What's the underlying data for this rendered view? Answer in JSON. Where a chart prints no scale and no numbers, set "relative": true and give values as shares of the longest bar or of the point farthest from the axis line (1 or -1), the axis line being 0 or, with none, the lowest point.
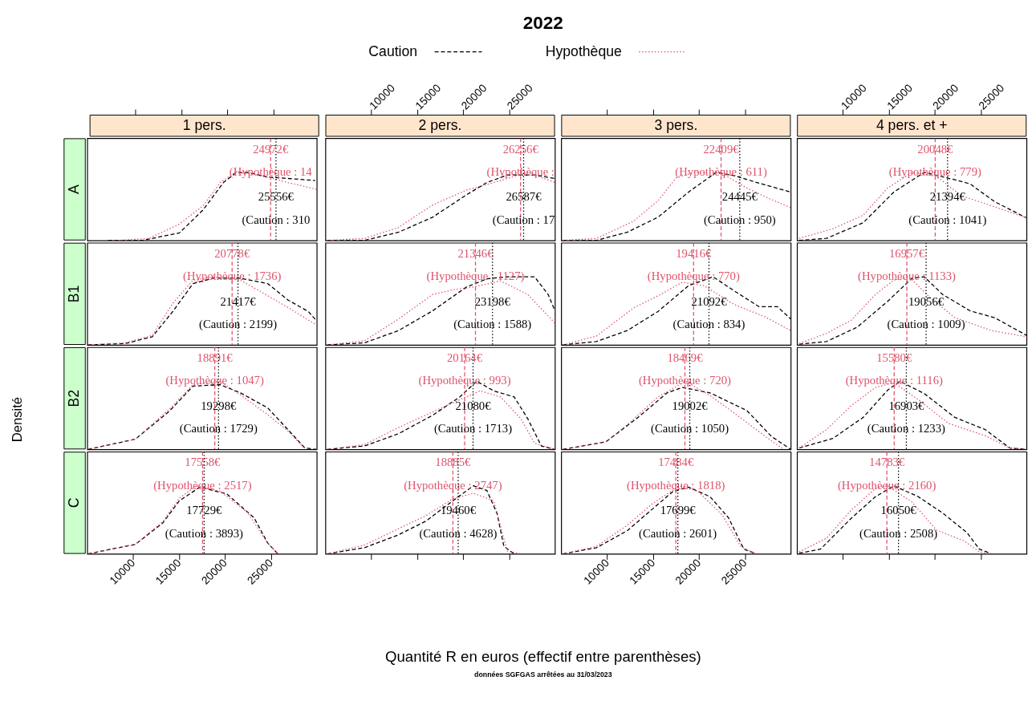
{
  "chart_data": [
    {
      "type": "line",
      "title": "1 pers.",
      "ylabel": "A",
      "relative": true,
      "xlim": [
        5000,
        30000
      ],
      "xticks": [
        10000,
        15000,
        20000,
        25000
      ],
      "tick_labels": false,
      "legend": "top",
      "series": [
        {
          "name": "Caution",
          "color": "#000000",
          "line_style": "dashed",
          "x": [
            7290,
            10980,
            15040,
            17630,
            19840,
            21140,
            22430,
            24650,
            26860,
            29820
          ],
          "values": [
            0,
            0,
            0.11,
            0.45,
            0.85,
            0.99,
            1,
            0.93,
            0.91,
            0.88
          ]
        },
        {
          "name": "Hypothèque",
          "color": "#df536b",
          "line_style": "dotted",
          "x": [
            8400,
            11720,
            15040,
            17630,
            19480,
            21140,
            23170,
            25010,
            26860,
            29080,
            30000
          ],
          "values": [
            0,
            0.03,
            0.24,
            0.51,
            0.85,
            1,
            0.97,
            0.92,
            0.85,
            0.78,
            0.75
          ]
        }
      ],
      "ref_lines": [
        {
          "axis": "x",
          "value": 24972,
          "label": "24972€\n(Hypothèque : 14",
          "color": "#df536b",
          "line_style": "dashed"
        },
        {
          "axis": "x",
          "value": 25556,
          "label": "25556€\n(Caution : 310",
          "color": "#000000",
          "line_style": "dotted"
        }
      ]
    },
    {
      "type": "line",
      "title": "2 pers.",
      "relative": true,
      "xlim": [
        5000,
        30000
      ],
      "xticks": [
        10000,
        15000,
        20000,
        25000
      ],
      "tick_labels": "x",
      "series": [
        {
          "name": "Caution",
          "color": "#000000",
          "line_style": "dashed",
          "x": [
            5190,
            9260,
            12960,
            16670,
            20370,
            22590,
            24810,
            27780,
            30000
          ],
          "values": [
            0,
            0,
            0.12,
            0.34,
            0.67,
            0.85,
            0.96,
            0.96,
            0.91
          ]
        },
        {
          "name": "Hypothèque",
          "color": "#df536b",
          "line_style": "dotted",
          "x": [
            5190,
            9260,
            12960,
            16670,
            20370,
            22590,
            24810,
            27040,
            30000
          ],
          "values": [
            0,
            0.03,
            0.19,
            0.52,
            0.74,
            0.82,
            0.91,
            1,
            0.85
          ]
        }
      ],
      "ref_lines": [
        {
          "axis": "x",
          "value": 26256,
          "label": "26256€\n(Hypothèque :",
          "color": "#df536b",
          "line_style": "dashed"
        },
        {
          "axis": "x",
          "value": 26587,
          "label": "26587€\n(Caution : 17",
          "color": "#000000",
          "line_style": "dotted"
        }
      ]
    },
    {
      "type": "line",
      "title": "3 pers.",
      "relative": true,
      "xlim": [
        5000,
        30000
      ],
      "xticks": [
        10000,
        15000,
        20000,
        25000
      ],
      "tick_labels": false,
      "series": [
        {
          "name": "Caution",
          "color": "#000000",
          "line_style": "dashed",
          "x": [
            5170,
            8840,
            12190,
            15530,
            18870,
            21880,
            23880,
            26560,
            30000
          ],
          "values": [
            0,
            0,
            0.12,
            0.34,
            0.71,
            1,
            0.95,
            0.84,
            0.71
          ]
        },
        {
          "name": "Hypothèque",
          "color": "#df536b",
          "line_style": "dotted",
          "x": [
            5170,
            8840,
            12850,
            15530,
            17530,
            19540,
            22550,
            25220,
            27230,
            30000
          ],
          "values": [
            0,
            0.03,
            0.28,
            0.58,
            0.92,
            1,
            0.98,
            0.77,
            0.64,
            0.48
          ]
        }
      ],
      "ref_lines": [
        {
          "axis": "x",
          "value": 22409,
          "label": "22409€\n(Hypothèque : 611)",
          "color": "#df536b",
          "line_style": "dashed"
        },
        {
          "axis": "x",
          "value": 24445,
          "label": "24445€\n(Caution : 950)",
          "color": "#000000",
          "line_style": "dotted"
        }
      ]
    },
    {
      "type": "line",
      "title": "4 pers. et +",
      "relative": true,
      "xlim": [
        5000,
        30000
      ],
      "xticks": [
        10000,
        15000,
        20000,
        25000
      ],
      "tick_labels": "x",
      "series": [
        {
          "name": "Caution",
          "color": "#000000",
          "line_style": "dashed",
          "x": [
            5230,
            8220,
            12210,
            15540,
            18860,
            22190,
            23850,
            26510,
            30000
          ],
          "values": [
            0,
            0.03,
            0.26,
            0.71,
            1,
            0.89,
            0.83,
            0.57,
            0.33
          ]
        },
        {
          "name": "Hypothèque",
          "color": "#df536b",
          "line_style": "dotted",
          "x": [
            5230,
            8890,
            12210,
            14870,
            17530,
            20190,
            22850,
            25510,
            30000
          ],
          "values": [
            0.03,
            0.17,
            0.37,
            0.77,
            1,
            0.94,
            0.66,
            0.54,
            0.33
          ]
        }
      ],
      "ref_lines": [
        {
          "axis": "x",
          "value": 20048,
          "label": "20048€\n(Hypothèque : 779)",
          "color": "#df536b",
          "line_style": "dashed"
        },
        {
          "axis": "x",
          "value": 21394,
          "label": "21394€\n(Caution : 1041)",
          "color": "#000000",
          "line_style": "dotted"
        }
      ]
    },
    {
      "type": "line",
      "ylabel": "B1",
      "relative": true,
      "xlim": [
        5000,
        30000
      ],
      "xticks": [
        10000,
        15000,
        20000,
        25000
      ],
      "tick_labels": false,
      "series": [
        {
          "name": "Caution",
          "color": "#000000",
          "line_style": "dashed",
          "x": [
            5070,
            9140,
            12090,
            14310,
            16520,
            18740,
            21690,
            24650,
            26860,
            29080,
            30000
          ],
          "values": [
            0,
            0.02,
            0.12,
            0.49,
            0.9,
            0.98,
            0.98,
            0.9,
            0.66,
            0.49,
            0.35
          ]
        },
        {
          "name": "Hypothèque",
          "color": "#df536b",
          "line_style": "dotted",
          "x": [
            5070,
            9140,
            12090,
            14310,
            16520,
            18740,
            21690,
            23910,
            26860,
            30000
          ],
          "values": [
            0,
            0.03,
            0.14,
            0.61,
            0.95,
            1,
            0.95,
            0.78,
            0.55,
            0.29
          ]
        }
      ],
      "ref_lines": [
        {
          "axis": "x",
          "value": 20778,
          "label": "20778€\n(Hypothèque : 1736)",
          "color": "#df536b",
          "line_style": "dashed"
        },
        {
          "axis": "x",
          "value": 21417,
          "label": "21417€\n(Caution : 2199)",
          "color": "#000000",
          "line_style": "dotted"
        }
      ]
    },
    {
      "type": "line",
      "relative": true,
      "xlim": [
        5000,
        30000
      ],
      "xticks": [
        10000,
        15000,
        20000,
        25000
      ],
      "tick_labels": false,
      "series": [
        {
          "name": "Caution",
          "color": "#000000",
          "line_style": "dashed",
          "x": [
            5190,
            9260,
            12960,
            16670,
            20370,
            22590,
            24810,
            27780,
            29260,
            30000
          ],
          "values": [
            0,
            0.03,
            0.21,
            0.5,
            0.85,
            0.97,
            1,
            1,
            0.74,
            0.5
          ]
        },
        {
          "name": "Hypothèque",
          "color": "#df536b",
          "line_style": "dotted",
          "x": [
            5190,
            9260,
            12960,
            16670,
            18890,
            21110,
            24070,
            27040,
            30000
          ],
          "values": [
            0,
            0.06,
            0.38,
            0.74,
            0.81,
            0.85,
            0.94,
            0.74,
            0.32
          ]
        }
      ],
      "ref_lines": [
        {
          "axis": "x",
          "value": 21346,
          "label": "21346€\n(Hypothèque : 1127)",
          "color": "#df536b",
          "line_style": "dashed"
        },
        {
          "axis": "x",
          "value": 23198,
          "label": "23198€\n(Caution : 1588)",
          "color": "#000000",
          "line_style": "dotted"
        }
      ]
    },
    {
      "type": "line",
      "relative": true,
      "xlim": [
        5000,
        30000
      ],
      "xticks": [
        10000,
        15000,
        20000,
        25000
      ],
      "tick_labels": false,
      "series": [
        {
          "name": "Caution",
          "color": "#000000",
          "line_style": "dashed",
          "x": [
            5170,
            8840,
            12190,
            15530,
            18870,
            21540,
            23880,
            26560,
            28560,
            30000
          ],
          "values": [
            0,
            0.05,
            0.21,
            0.49,
            0.87,
            1,
            0.79,
            0.56,
            0.56,
            0.38
          ]
        },
        {
          "name": "Hypothèque",
          "color": "#df536b",
          "line_style": "dotted",
          "x": [
            5170,
            8840,
            12850,
            15530,
            18200,
            20540,
            23880,
            27230,
            30000
          ],
          "values": [
            0,
            0.13,
            0.54,
            0.72,
            0.92,
            0.87,
            0.59,
            0.41,
            0.21
          ]
        }
      ],
      "ref_lines": [
        {
          "axis": "x",
          "value": 19416,
          "label": "19416€\n(Hypothèque : 770)",
          "color": "#df536b",
          "line_style": "dashed"
        },
        {
          "axis": "x",
          "value": 21092,
          "label": "21092€\n(Caution : 834)",
          "color": "#000000",
          "line_style": "dotted"
        }
      ]
    },
    {
      "type": "line",
      "relative": true,
      "xlim": [
        5000,
        30000
      ],
      "xticks": [
        10000,
        15000,
        20000,
        25000
      ],
      "tick_labels": false,
      "series": [
        {
          "name": "Caution",
          "color": "#000000",
          "line_style": "dashed",
          "x": [
            5230,
            8220,
            11550,
            14870,
            17530,
            18860,
            20860,
            23850,
            26510,
            30000
          ],
          "values": [
            0.01,
            0.05,
            0.26,
            0.64,
            0.98,
            1,
            0.74,
            0.5,
            0.4,
            0.14
          ]
        },
        {
          "name": "Hypothèque",
          "color": "#df536b",
          "line_style": "dotted",
          "x": [
            5230,
            8220,
            10880,
            13540,
            15540,
            17200,
            19530,
            22190,
            26180,
            30000
          ],
          "values": [
            0.02,
            0.17,
            0.36,
            0.74,
            0.95,
            1,
            0.69,
            0.4,
            0.21,
            0.12
          ]
        }
      ],
      "ref_lines": [
        {
          "axis": "x",
          "value": 16957,
          "label": "16957€\n(Hypothèque : 1133)",
          "color": "#df536b",
          "line_style": "dashed"
        },
        {
          "axis": "x",
          "value": 19056,
          "label": "19056€\n(Caution : 1009)",
          "color": "#000000",
          "line_style": "dotted"
        }
      ]
    },
    {
      "type": "line",
      "ylabel": "B2",
      "relative": true,
      "xlim": [
        5000,
        30000
      ],
      "xticks": [
        10000,
        15000,
        20000,
        25000
      ],
      "tick_labels": false,
      "series": [
        {
          "name": "Caution",
          "color": "#000000",
          "line_style": "dashed",
          "x": [
            5070,
            10240,
            13940,
            16520,
            19480,
            21690,
            24650,
            26860,
            28710,
            30000
          ],
          "values": [
            0,
            0.15,
            0.56,
            0.93,
            0.95,
            0.83,
            0.61,
            0.29,
            0.02,
            0
          ]
        },
        {
          "name": "Hypothèque",
          "color": "#df536b",
          "line_style": "dotted",
          "x": [
            5070,
            10240,
            13940,
            16520,
            19480,
            21690,
            24650,
            26860,
            28710
          ],
          "values": [
            0,
            0.15,
            0.59,
            0.95,
            1,
            0.8,
            0.51,
            0.27,
            0.01
          ]
        }
      ],
      "ref_lines": [
        {
          "axis": "x",
          "value": 18891,
          "label": "18891€\n(Hypothèque : 1047)",
          "color": "#df536b",
          "line_style": "dashed"
        },
        {
          "axis": "x",
          "value": 19298,
          "label": "19298€\n(Caution : 1729)",
          "color": "#000000",
          "line_style": "dotted"
        }
      ]
    },
    {
      "type": "line",
      "relative": true,
      "xlim": [
        5000,
        30000
      ],
      "xticks": [
        10000,
        15000,
        20000,
        25000
      ],
      "tick_labels": false,
      "series": [
        {
          "name": "Caution",
          "color": "#000000",
          "line_style": "dashed",
          "x": [
            5190,
            9260,
            12960,
            16670,
            19630,
            21480,
            23330,
            25560,
            27040,
            28520,
            30000
          ],
          "values": [
            0,
            0.05,
            0.23,
            0.5,
            0.77,
            1,
            0.86,
            0.77,
            0.45,
            0.05,
            0
          ]
        },
        {
          "name": "Hypothèque",
          "color": "#df536b",
          "line_style": "dotted",
          "x": [
            5190,
            9260,
            12960,
            16670,
            19630,
            21850,
            24070,
            26300,
            27780,
            30000
          ],
          "values": [
            0,
            0.07,
            0.32,
            0.55,
            0.73,
            0.86,
            0.77,
            0.45,
            0.09,
            0
          ]
        }
      ],
      "ref_lines": [
        {
          "axis": "x",
          "value": 20164,
          "label": "20164€\n(Hypothèque : 993)",
          "color": "#df536b",
          "line_style": "dashed"
        },
        {
          "axis": "x",
          "value": 21080,
          "label": "21080€\n(Caution : 1713)",
          "color": "#000000",
          "line_style": "dotted"
        }
      ]
    },
    {
      "type": "line",
      "relative": true,
      "xlim": [
        5000,
        30000
      ],
      "xticks": [
        10000,
        15000,
        20000,
        25000
      ],
      "tick_labels": false,
      "series": [
        {
          "name": "Caution",
          "color": "#000000",
          "line_style": "dashed",
          "x": [
            5170,
            9850,
            13190,
            16530,
            18200,
            21210,
            25220,
            27900,
            30000
          ],
          "values": [
            0,
            0.11,
            0.45,
            0.83,
            0.91,
            0.83,
            0.57,
            0.19,
            0
          ]
        },
        {
          "name": "Hypothèque",
          "color": "#df536b",
          "line_style": "dotted",
          "x": [
            5170,
            9850,
            12520,
            15530,
            18540,
            21210,
            23880,
            27230,
            29240
          ],
          "values": [
            0,
            0.11,
            0.4,
            0.77,
            1,
            0.79,
            0.53,
            0.19,
            0
          ]
        }
      ],
      "ref_lines": [
        {
          "axis": "x",
          "value": 18469,
          "label": "18469€\n(Hypothèque : 720)",
          "color": "#df536b",
          "line_style": "dashed"
        },
        {
          "axis": "x",
          "value": 19002,
          "label": "19002€\n(Caution : 1050)",
          "color": "#000000",
          "line_style": "dotted"
        }
      ]
    },
    {
      "type": "line",
      "relative": true,
      "xlim": [
        5000,
        30000
      ],
      "xticks": [
        10000,
        15000,
        20000,
        25000
      ],
      "tick_labels": false,
      "series": [
        {
          "name": "Caution",
          "color": "#000000",
          "line_style": "dashed",
          "x": [
            5230,
            8890,
            12210,
            14870,
            16200,
            18860,
            22190,
            25510,
            28170,
            30000
          ],
          "values": [
            0.02,
            0.16,
            0.47,
            0.87,
            1,
            0.82,
            0.47,
            0.29,
            0.02,
            0
          ]
        },
        {
          "name": "Hypothèque",
          "color": "#df536b",
          "line_style": "dotted",
          "x": [
            5230,
            8220,
            10880,
            13540,
            15540,
            18200,
            21520,
            25510,
            28170,
            30000
          ],
          "values": [
            0.02,
            0.29,
            0.64,
            0.91,
            0.98,
            0.73,
            0.38,
            0.2,
            0.02,
            0
          ]
        }
      ],
      "ref_lines": [
        {
          "axis": "x",
          "value": 15580,
          "label": "15580€\n(Hypothèque : 1116)",
          "color": "#df536b",
          "line_style": "dashed"
        },
        {
          "axis": "x",
          "value": 16903,
          "label": "16903€\n(Caution : 1233)",
          "color": "#000000",
          "line_style": "dotted"
        }
      ]
    },
    {
      "type": "line",
      "ylabel": "C",
      "relative": true,
      "xlim": [
        5000,
        30000
      ],
      "xticks": [
        10000,
        15000,
        20000,
        25000
      ],
      "tick_labels": "x",
      "series": [
        {
          "name": "Caution",
          "color": "#000000",
          "line_style": "dashed",
          "x": [
            5070,
            10240,
            13200,
            15040,
            17260,
            20210,
            23170,
            24650,
            25760
          ],
          "values": [
            0,
            0.14,
            0.45,
            0.78,
            0.98,
            0.88,
            0.53,
            0.16,
            0
          ]
        },
        {
          "name": "Hypothèque",
          "color": "#df536b",
          "line_style": "dotted",
          "x": [
            5070,
            10240,
            13200,
            15040,
            16890,
            19480,
            22430,
            24650,
            25760
          ],
          "values": [
            0,
            0.14,
            0.47,
            0.82,
            1,
            0.92,
            0.61,
            0.16,
            0
          ]
        }
      ],
      "ref_lines": [
        {
          "axis": "x",
          "value": 17558,
          "label": "17558€\n(Hypothèque : 2517)",
          "color": "#df536b",
          "line_style": "dashed"
        },
        {
          "axis": "x",
          "value": 17729,
          "label": "17729€\n(Caution : 3893)",
          "color": "#000000",
          "line_style": "dotted"
        }
      ]
    },
    {
      "type": "line",
      "relative": true,
      "xlim": [
        5000,
        30000
      ],
      "xticks": [
        10000,
        15000,
        20000,
        25000
      ],
      "tick_labels": false,
      "series": [
        {
          "name": "Caution",
          "color": "#000000",
          "line_style": "dashed",
          "x": [
            5190,
            9260,
            12960,
            15930,
            18890,
            21110,
            22590,
            23700,
            24440,
            25560
          ],
          "values": [
            0,
            0.09,
            0.28,
            0.48,
            0.78,
            1,
            0.93,
            0.59,
            0.11,
            0
          ]
        },
        {
          "name": "Hypothèque",
          "color": "#df536b",
          "line_style": "dotted",
          "x": [
            5190,
            9260,
            12960,
            15930,
            18890,
            21110,
            23330,
            24070,
            24810,
            26300
          ],
          "values": [
            0,
            0.13,
            0.37,
            0.56,
            0.81,
            0.89,
            0.78,
            0.41,
            0.04,
            0
          ]
        }
      ],
      "ref_lines": [
        {
          "axis": "x",
          "value": 18885,
          "label": "18885€\n(Hypothèque : 2747)",
          "color": "#df536b",
          "line_style": "dashed"
        },
        {
          "axis": "x",
          "value": 19460,
          "label": "19460€\n(Caution : 4628)",
          "color": "#000000",
          "line_style": "dotted"
        }
      ]
    },
    {
      "type": "line",
      "relative": true,
      "xlim": [
        5000,
        30000
      ],
      "xticks": [
        10000,
        15000,
        20000,
        25000
      ],
      "tick_labels": "x",
      "series": [
        {
          "name": "Caution",
          "color": "#000000",
          "line_style": "dashed",
          "x": [
            5170,
            8840,
            12190,
            14860,
            17200,
            18870,
            21210,
            23220,
            24890,
            26220
          ],
          "values": [
            0,
            0.09,
            0.34,
            0.65,
            0.92,
            0.98,
            0.84,
            0.53,
            0.07,
            0
          ]
        },
        {
          "name": "Hypothèque",
          "color": "#df536b",
          "line_style": "dotted",
          "x": [
            5170,
            8840,
            12190,
            14860,
            17870,
            19870,
            22550,
            24550,
            26220
          ],
          "values": [
            0,
            0.11,
            0.42,
            0.73,
            1,
            0.92,
            0.57,
            0.11,
            0
          ]
        }
      ],
      "ref_lines": [
        {
          "axis": "x",
          "value": 17484,
          "label": "17484€\n(Hypothèque : 1818)",
          "color": "#df536b",
          "line_style": "dashed"
        },
        {
          "axis": "x",
          "value": 17699,
          "label": "17699€\n(Caution : 2601)",
          "color": "#000000",
          "line_style": "dotted"
        }
      ]
    },
    {
      "type": "line",
      "relative": true,
      "xlim": [
        5000,
        30000
      ],
      "xticks": [
        10000,
        15000,
        20000,
        25000
      ],
      "tick_labels": false,
      "series": [
        {
          "name": "Caution",
          "color": "#000000",
          "line_style": "dashed",
          "x": [
            5230,
            7560,
            10880,
            13540,
            15540,
            18200,
            20860,
            23520,
            24850,
            26180
          ],
          "values": [
            0.01,
            0.07,
            0.52,
            0.84,
            1,
            0.84,
            0.6,
            0.31,
            0.07,
            0
          ]
        },
        {
          "name": "Hypothèque",
          "color": "#df536b",
          "line_style": "dotted",
          "x": [
            5230,
            8220,
            10880,
            13540,
            14870,
            17530,
            20190,
            23190,
            24850,
            26180
          ],
          "values": [
            0.03,
            0.23,
            0.64,
            0.96,
            1,
            0.76,
            0.35,
            0.19,
            0.03,
            0
          ]
        }
      ],
      "ref_lines": [
        {
          "axis": "x",
          "value": 14783,
          "label": "14783€\n(Hypothèque : 2160)",
          "color": "#df536b",
          "line_style": "dashed"
        },
        {
          "axis": "x",
          "value": 16050,
          "label": "16050€\n(Caution : 2508)",
          "color": "#000000",
          "line_style": "dotted"
        }
      ]
    },
    {
      "type": "other",
      "title": "2022",
      "xlabel": "Quantité R en euros (effectif entre parenthèses)",
      "ylabel": "Densité",
      "annotations": [
        "données SGFGAS arrêtées  au 31/03/2023"
      ]
    }
  ]
}
